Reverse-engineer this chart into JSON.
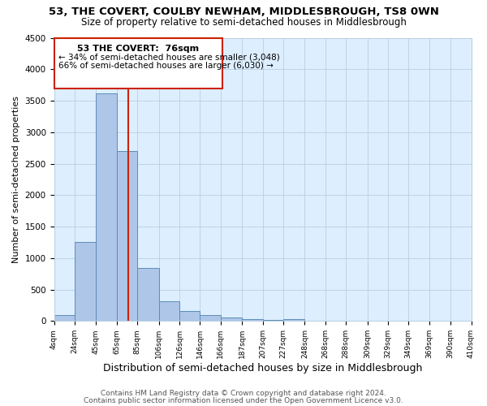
{
  "title1": "53, THE COVERT, COULBY NEWHAM, MIDDLESBROUGH, TS8 0WN",
  "title2": "Size of property relative to semi-detached houses in Middlesbrough",
  "xlabel": "Distribution of semi-detached houses by size in Middlesbrough",
  "ylabel": "Number of semi-detached properties",
  "footnote1": "Contains HM Land Registry data © Crown copyright and database right 2024.",
  "footnote2": "Contains public sector information licensed under the Open Government Licence v3.0.",
  "property_label": "53 THE COVERT:  76sqm",
  "pct_smaller": 34,
  "count_smaller": 3048,
  "pct_larger": 66,
  "count_larger": 6030,
  "bin_edges": [
    4,
    24,
    45,
    65,
    85,
    106,
    126,
    146,
    166,
    187,
    207,
    227,
    248,
    268,
    288,
    309,
    329,
    349,
    369,
    390,
    410
  ],
  "bin_labels": [
    "4sqm",
    "24sqm",
    "45sqm",
    "65sqm",
    "85sqm",
    "106sqm",
    "126sqm",
    "146sqm",
    "166sqm",
    "187sqm",
    "207sqm",
    "227sqm",
    "248sqm",
    "268sqm",
    "288sqm",
    "309sqm",
    "329sqm",
    "349sqm",
    "369sqm",
    "390sqm",
    "410sqm"
  ],
  "counts": [
    90,
    1250,
    3620,
    2700,
    840,
    320,
    155,
    100,
    55,
    35,
    20,
    25,
    0,
    0,
    0,
    0,
    0,
    0,
    0,
    0
  ],
  "bar_color": "#aec6e8",
  "bar_edge_color": "#5b8db8",
  "vline_x": 76,
  "vline_color": "#cc2200",
  "box_color": "#cc2200",
  "bg_color": "#ddeeff",
  "grid_color": "#b8cfe0",
  "ylim": [
    0,
    4500
  ],
  "title1_fontsize": 9.5,
  "title2_fontsize": 8.5,
  "xlabel_fontsize": 9,
  "ylabel_fontsize": 8,
  "footnote_fontsize": 6.5
}
